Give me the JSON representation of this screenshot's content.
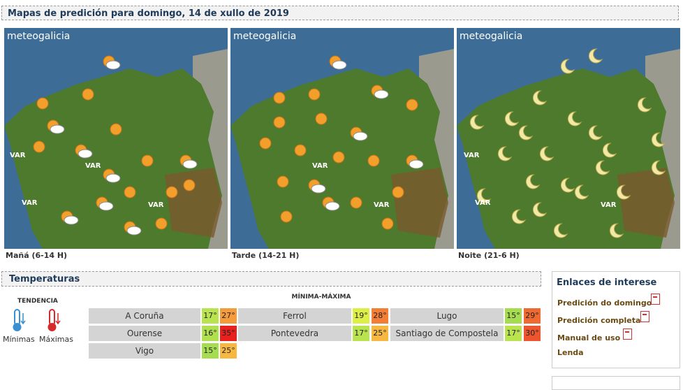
{
  "header": {
    "title": "Mapas de predición para domingo, 14 de xullo de 2019"
  },
  "maps": [
    {
      "logo": "meteogalicia",
      "caption": "Mañá (6-14 H)",
      "var_labels": [
        "VAR",
        "VAR",
        "VAR",
        "VAR"
      ]
    },
    {
      "logo": "meteogalicia",
      "caption": "Tarde (14-21 H)",
      "var_labels": [
        "VAR",
        "VAR"
      ]
    },
    {
      "logo": "meteogalicia",
      "caption": "Noite (21-6 H)",
      "var_labels": [
        "VAR",
        "VAR",
        "VAR"
      ]
    }
  ],
  "temperatures": {
    "title": "Temperaturas",
    "tendency": "TENDENCIA",
    "minimas": "Mínimas",
    "maximas": "Máximas",
    "column_header": "MÍNIMA-MÁXIMA",
    "rows": [
      [
        {
          "city": "A Coruña",
          "min": {
            "text": "17°",
            "color": "#b9e34f"
          },
          "max": {
            "text": "27°",
            "color": "#f49b3a"
          }
        },
        {
          "city": "Ferrol",
          "min": {
            "text": "19°",
            "color": "#dcef45"
          },
          "max": {
            "text": "28°",
            "color": "#f27f35"
          }
        },
        {
          "city": "Lugo",
          "min": {
            "text": "15°",
            "color": "#a6dc4f"
          },
          "max": {
            "text": "29°",
            "color": "#ef6a31"
          }
        }
      ],
      [
        {
          "city": "Ourense",
          "min": {
            "text": "16°",
            "color": "#b0e04f"
          },
          "max": {
            "text": "35°",
            "color": "#e8211f"
          }
        },
        {
          "city": "Pontevedra",
          "min": {
            "text": "17°",
            "color": "#b9e34f"
          },
          "max": {
            "text": "25°",
            "color": "#f6b840"
          }
        },
        {
          "city": "Santiago de Compostela",
          "min": {
            "text": "17°",
            "color": "#b9e34f"
          },
          "max": {
            "text": "30°",
            "color": "#ec552d"
          }
        }
      ],
      [
        {
          "city": "Vigo",
          "min": {
            "text": "15°",
            "color": "#a6dc4f"
          },
          "max": {
            "text": "25°",
            "color": "#f6b840"
          }
        }
      ]
    ]
  },
  "links": {
    "title": "Enlaces de interese",
    "items": [
      "Predición do domingo",
      "Predición completa",
      "Manual de uso",
      "Lenda"
    ]
  }
}
